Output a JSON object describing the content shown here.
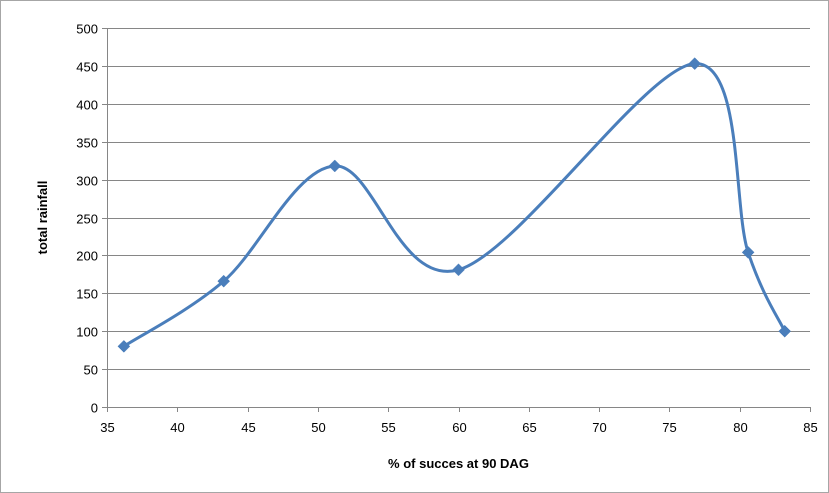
{
  "chart_data": {
    "type": "line",
    "smooth": true,
    "title": "",
    "xlabel": "% of succes at 90 DAG",
    "ylabel": "total rainfall",
    "xlim": [
      35,
      85
    ],
    "ylim": [
      0,
      500
    ],
    "x_ticks": [
      35,
      40,
      45,
      50,
      55,
      60,
      65,
      70,
      75,
      80,
      85
    ],
    "y_ticks": [
      0,
      50,
      100,
      150,
      200,
      250,
      300,
      350,
      400,
      450,
      500
    ],
    "grid": "horizontal",
    "legend": "none",
    "series": [
      {
        "color": "#4a7ebb",
        "marker": "diamond",
        "points": [
          {
            "x": 36.2,
            "y": 80
          },
          {
            "x": 43.3,
            "y": 166
          },
          {
            "x": 51.2,
            "y": 318
          },
          {
            "x": 60.0,
            "y": 181
          },
          {
            "x": 76.8,
            "y": 453
          },
          {
            "x": 80.6,
            "y": 204
          },
          {
            "x": 83.2,
            "y": 100
          }
        ]
      }
    ]
  }
}
